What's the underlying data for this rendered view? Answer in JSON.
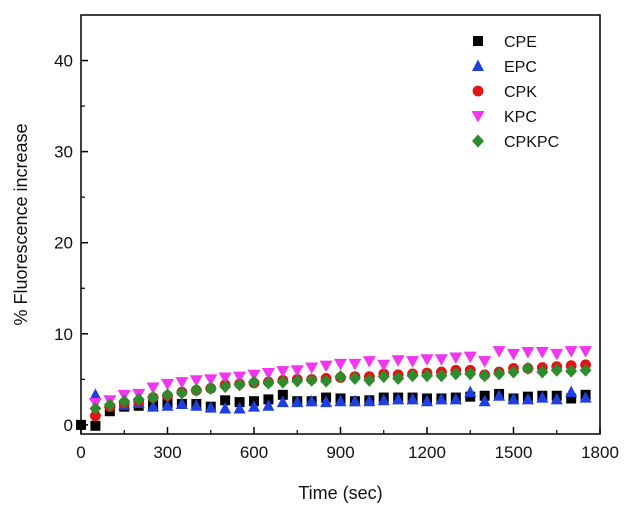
{
  "chart_data": {
    "type": "scatter",
    "title": "",
    "xlabel": "Time (sec)",
    "ylabel": "% Fluorescence increase",
    "xlim": [
      0,
      1800
    ],
    "ylim": [
      -1,
      45
    ],
    "xticks": [
      0,
      300,
      600,
      900,
      1200,
      1500,
      1800
    ],
    "yticks": [
      0,
      10,
      20,
      30,
      40
    ],
    "grid": false,
    "legend_position": "top-right",
    "series": [
      {
        "name": "CPE",
        "marker": "square",
        "color": "#000000",
        "x": [
          0,
          50,
          100,
          150,
          200,
          250,
          300,
          350,
          400,
          450,
          500,
          550,
          600,
          650,
          700,
          750,
          800,
          850,
          900,
          950,
          1000,
          1050,
          1100,
          1150,
          1200,
          1250,
          1300,
          1350,
          1400,
          1450,
          1500,
          1550,
          1600,
          1650,
          1700,
          1750
        ],
        "y": [
          0.0,
          -0.1,
          1.5,
          2.0,
          2.1,
          2.2,
          2.4,
          2.3,
          2.3,
          2.0,
          2.7,
          2.5,
          2.6,
          2.8,
          3.3,
          2.6,
          2.6,
          3.0,
          2.9,
          2.6,
          2.7,
          3.0,
          3.0,
          3.0,
          2.9,
          2.9,
          3.0,
          3.1,
          3.2,
          3.4,
          2.9,
          3.1,
          3.2,
          3.2,
          2.9,
          3.3
        ]
      },
      {
        "name": "EPC",
        "marker": "triangle-up",
        "color": "#1f3fe0",
        "x": [
          50,
          100,
          150,
          200,
          250,
          300,
          350,
          400,
          450,
          500,
          550,
          600,
          650,
          700,
          750,
          800,
          850,
          900,
          950,
          1000,
          1050,
          1100,
          1150,
          1200,
          1250,
          1300,
          1350,
          1400,
          1450,
          1500,
          1550,
          1600,
          1650,
          1700,
          1750
        ],
        "y": [
          3.3,
          2.4,
          2.2,
          2.4,
          2.0,
          2.1,
          2.3,
          2.1,
          1.9,
          1.8,
          1.8,
          2.0,
          2.1,
          2.5,
          2.5,
          2.6,
          2.5,
          2.6,
          2.6,
          2.6,
          2.7,
          2.8,
          2.8,
          2.6,
          2.8,
          2.8,
          3.6,
          2.6,
          3.2,
          2.8,
          2.8,
          3.0,
          2.8,
          3.6,
          3.0
        ]
      },
      {
        "name": "CPK",
        "marker": "circle",
        "color": "#e01515",
        "x": [
          50,
          100,
          150,
          200,
          250,
          300,
          350,
          400,
          450,
          500,
          550,
          600,
          650,
          700,
          750,
          800,
          850,
          900,
          950,
          1000,
          1050,
          1100,
          1150,
          1200,
          1250,
          1300,
          1350,
          1400,
          1450,
          1500,
          1550,
          1600,
          1650,
          1700,
          1750
        ],
        "y": [
          1.0,
          2.0,
          2.4,
          2.6,
          3.0,
          3.2,
          3.6,
          3.8,
          4.0,
          4.4,
          4.5,
          4.6,
          4.7,
          4.9,
          5.0,
          5.0,
          5.1,
          5.2,
          5.3,
          5.3,
          5.6,
          5.5,
          5.6,
          5.7,
          5.8,
          6.0,
          6.0,
          5.5,
          5.8,
          6.2,
          6.2,
          6.3,
          6.4,
          6.5,
          6.6
        ]
      },
      {
        "name": "KPC",
        "marker": "triangle-down",
        "color": "#f036f0",
        "x": [
          50,
          100,
          150,
          200,
          250,
          300,
          350,
          400,
          450,
          500,
          550,
          600,
          650,
          700,
          750,
          800,
          850,
          900,
          950,
          1000,
          1050,
          1100,
          1150,
          1200,
          1250,
          1300,
          1350,
          1400,
          1450,
          1500,
          1550,
          1600,
          1650,
          1700,
          1750
        ],
        "y": [
          2.4,
          2.7,
          3.3,
          3.4,
          4.1,
          4.5,
          4.7,
          4.9,
          5.0,
          5.2,
          5.3,
          5.5,
          5.7,
          5.9,
          6.0,
          6.3,
          6.5,
          6.7,
          6.7,
          7.0,
          6.6,
          7.1,
          7.0,
          7.2,
          7.2,
          7.4,
          7.5,
          7.0,
          8.1,
          7.8,
          8.0,
          8.0,
          7.8,
          8.1,
          8.1
        ]
      },
      {
        "name": "CPKPC",
        "marker": "diamond",
        "color": "#2e8b2e",
        "x": [
          50,
          100,
          150,
          200,
          250,
          300,
          350,
          400,
          450,
          500,
          550,
          600,
          650,
          700,
          750,
          800,
          850,
          900,
          950,
          1000,
          1050,
          1100,
          1150,
          1200,
          1250,
          1300,
          1350,
          1400,
          1450,
          1500,
          1550,
          1600,
          1650,
          1700,
          1750
        ],
        "y": [
          1.8,
          2.2,
          2.6,
          2.8,
          3.0,
          3.3,
          3.5,
          3.8,
          4.0,
          4.2,
          4.4,
          4.7,
          4.6,
          4.7,
          4.8,
          4.9,
          4.8,
          5.3,
          5.1,
          4.9,
          5.3,
          5.1,
          5.4,
          5.4,
          5.4,
          5.6,
          5.6,
          5.4,
          5.6,
          5.8,
          6.2,
          5.8,
          6.0,
          5.9,
          6.0
        ]
      }
    ]
  }
}
